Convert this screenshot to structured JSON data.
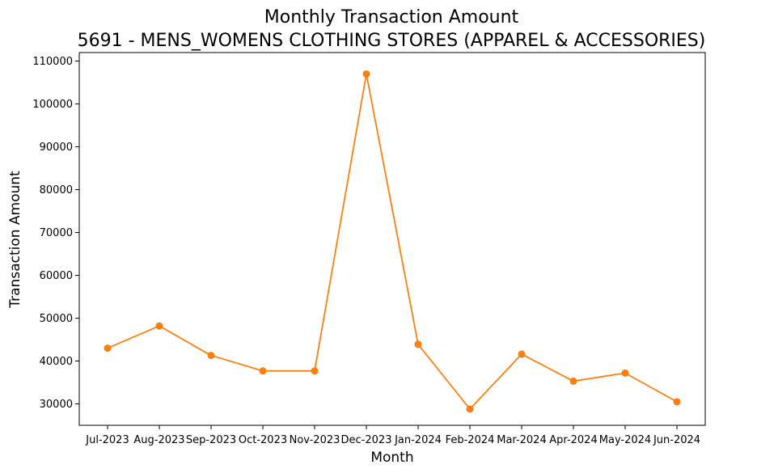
{
  "chart_data": {
    "type": "line",
    "title": "Monthly Transaction Amount",
    "subtitle": "5691 - MENS_WOMENS CLOTHING STORES (APPAREL & ACCESSORIES)",
    "xlabel": "Month",
    "ylabel": "Transaction Amount",
    "categories": [
      "Jul-2023",
      "Aug-2023",
      "Sep-2023",
      "Oct-2023",
      "Nov-2023",
      "Dec-2023",
      "Jan-2024",
      "Feb-2024",
      "Mar-2024",
      "Apr-2024",
      "May-2024",
      "Jun-2024"
    ],
    "series": [
      {
        "values": [
          43000,
          48200,
          41300,
          37700,
          37700,
          107000,
          43900,
          28800,
          41600,
          35300,
          37200,
          30500
        ],
        "color": "#ff7f0e",
        "marker": "circle"
      }
    ],
    "ylim": [
      25000,
      112000
    ],
    "yticks": [
      30000,
      40000,
      50000,
      60000,
      70000,
      80000,
      90000,
      100000,
      110000
    ],
    "ytick_labels": [
      "30000",
      "40000",
      "50000",
      "60000",
      "70000",
      "80000",
      "90000",
      "100000",
      "110000"
    ],
    "grid": false,
    "legend": "none"
  }
}
